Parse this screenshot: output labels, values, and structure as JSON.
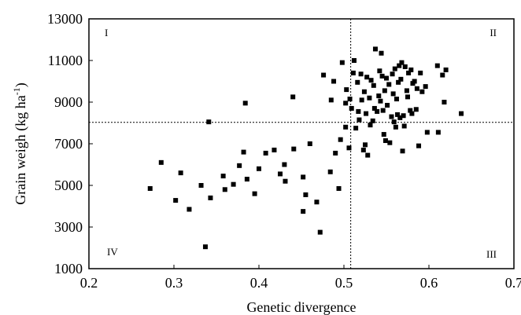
{
  "chart_data": {
    "type": "scatter",
    "title": "",
    "xlabel": "Genetic divergence",
    "ylabel": "Grain weigh (kg ha",
    "ylabel_sup": "-1",
    "ylabel_close": ")",
    "xlim": [
      0.2,
      0.7
    ],
    "ylim": [
      1000,
      13000
    ],
    "xticks": [
      0.2,
      0.3,
      0.4,
      0.5,
      0.6,
      0.7
    ],
    "xtick_labels": [
      "0.2",
      "0.3",
      "0.4",
      "0.5",
      "0.6",
      "0.7"
    ],
    "yticks": [
      1000,
      3000,
      5000,
      7000,
      9000,
      11000,
      13000
    ],
    "ytick_labels": [
      "1000",
      "3000",
      "5000",
      "7000",
      "9000",
      "11000",
      "13000"
    ],
    "grid": false,
    "reference_lines": {
      "x": 0.508,
      "y": 8030
    },
    "quadrant_labels": [
      "I",
      "II",
      "III",
      "IV"
    ],
    "marker_color": "#000000",
    "points": [
      [
        0.272,
        4850
      ],
      [
        0.285,
        6100
      ],
      [
        0.302,
        4280
      ],
      [
        0.308,
        5600
      ],
      [
        0.318,
        3850
      ],
      [
        0.332,
        5000
      ],
      [
        0.337,
        2050
      ],
      [
        0.341,
        8050
      ],
      [
        0.343,
        4400
      ],
      [
        0.358,
        5450
      ],
      [
        0.36,
        4800
      ],
      [
        0.37,
        5050
      ],
      [
        0.377,
        5950
      ],
      [
        0.382,
        6600
      ],
      [
        0.384,
        8950
      ],
      [
        0.386,
        5300
      ],
      [
        0.395,
        4600
      ],
      [
        0.4,
        5800
      ],
      [
        0.408,
        6550
      ],
      [
        0.418,
        6700
      ],
      [
        0.425,
        5550
      ],
      [
        0.43,
        6000
      ],
      [
        0.431,
        5200
      ],
      [
        0.44,
        9250
      ],
      [
        0.441,
        6750
      ],
      [
        0.452,
        5400
      ],
      [
        0.452,
        3750
      ],
      [
        0.455,
        4550
      ],
      [
        0.46,
        7000
      ],
      [
        0.468,
        4200
      ],
      [
        0.472,
        2750
      ],
      [
        0.476,
        10300
      ],
      [
        0.484,
        5650
      ],
      [
        0.485,
        9100
      ],
      [
        0.488,
        10000
      ],
      [
        0.49,
        6550
      ],
      [
        0.494,
        4850
      ],
      [
        0.496,
        7200
      ],
      [
        0.498,
        10900
      ],
      [
        0.502,
        7800
      ],
      [
        0.502,
        8950
      ],
      [
        0.503,
        9600
      ],
      [
        0.506,
        6800
      ],
      [
        0.507,
        9150
      ],
      [
        0.509,
        8700
      ],
      [
        0.511,
        10400
      ],
      [
        0.512,
        11000
      ],
      [
        0.514,
        7750
      ],
      [
        0.516,
        9950
      ],
      [
        0.517,
        8550
      ],
      [
        0.518,
        8150
      ],
      [
        0.52,
        10350
      ],
      [
        0.521,
        9100
      ],
      [
        0.523,
        6700
      ],
      [
        0.524,
        9500
      ],
      [
        0.525,
        6950
      ],
      [
        0.526,
        8450
      ],
      [
        0.527,
        10200
      ],
      [
        0.528,
        6450
      ],
      [
        0.53,
        9200
      ],
      [
        0.531,
        7900
      ],
      [
        0.532,
        10050
      ],
      [
        0.534,
        8100
      ],
      [
        0.535,
        9800
      ],
      [
        0.536,
        8700
      ],
      [
        0.537,
        11550
      ],
      [
        0.539,
        8550
      ],
      [
        0.541,
        9300
      ],
      [
        0.542,
        10500
      ],
      [
        0.543,
        9050
      ],
      [
        0.544,
        11350
      ],
      [
        0.545,
        10250
      ],
      [
        0.546,
        8600
      ],
      [
        0.547,
        7450
      ],
      [
        0.548,
        9550
      ],
      [
        0.549,
        7150
      ],
      [
        0.55,
        10150
      ],
      [
        0.551,
        8850
      ],
      [
        0.553,
        9850
      ],
      [
        0.554,
        7050
      ],
      [
        0.556,
        8300
      ],
      [
        0.557,
        10350
      ],
      [
        0.558,
        9400
      ],
      [
        0.559,
        8050
      ],
      [
        0.56,
        10600
      ],
      [
        0.561,
        7800
      ],
      [
        0.562,
        9150
      ],
      [
        0.563,
        8400
      ],
      [
        0.564,
        9950
      ],
      [
        0.565,
        10750
      ],
      [
        0.566,
        8250
      ],
      [
        0.567,
        10100
      ],
      [
        0.568,
        10900
      ],
      [
        0.569,
        6650
      ],
      [
        0.57,
        8350
      ],
      [
        0.571,
        7850
      ],
      [
        0.572,
        10700
      ],
      [
        0.574,
        9550
      ],
      [
        0.575,
        9250
      ],
      [
        0.576,
        10400
      ],
      [
        0.578,
        8600
      ],
      [
        0.579,
        10550
      ],
      [
        0.58,
        8450
      ],
      [
        0.581,
        9900
      ],
      [
        0.583,
        10000
      ],
      [
        0.585,
        8650
      ],
      [
        0.586,
        9650
      ],
      [
        0.588,
        6900
      ],
      [
        0.59,
        10400
      ],
      [
        0.592,
        9500
      ],
      [
        0.596,
        9750
      ],
      [
        0.598,
        7550
      ],
      [
        0.61,
        10750
      ],
      [
        0.611,
        7550
      ],
      [
        0.616,
        10300
      ],
      [
        0.618,
        9000
      ],
      [
        0.62,
        10550
      ],
      [
        0.638,
        8450
      ]
    ]
  }
}
